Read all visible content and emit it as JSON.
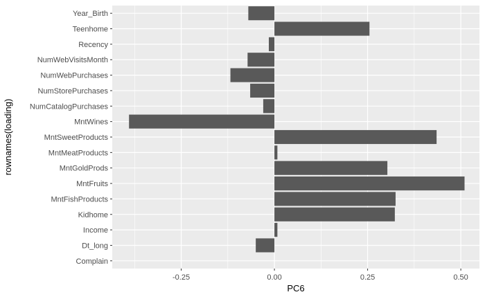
{
  "chart_data": {
    "type": "bar",
    "orientation": "horizontal",
    "title": "",
    "xlabel": "PC6",
    "ylabel": "rownames(loading)",
    "categories": [
      "Year_Birth",
      "Teenhome",
      "Recency",
      "NumWebVisitsMonth",
      "NumWebPurchases",
      "NumStorePurchases",
      "NumCatalogPurchases",
      "MntWines",
      "MntSweetProducts",
      "MntMeatProducts",
      "MntGoldProds",
      "MntFruits",
      "MntFishProducts",
      "Kidhome",
      "Income",
      "Dt_long",
      "Complain"
    ],
    "values": [
      -0.07,
      0.255,
      -0.015,
      -0.072,
      -0.118,
      -0.065,
      -0.03,
      -0.39,
      0.435,
      0.008,
      0.303,
      0.51,
      0.325,
      0.323,
      0.008,
      -0.05,
      0.0
    ],
    "xlim": [
      -0.435,
      0.55
    ],
    "xticks": [
      -0.25,
      0.0,
      0.25,
      0.5
    ],
    "xtick_labels": [
      "-0.25",
      "0.00",
      "0.25",
      "0.50"
    ],
    "grid": true,
    "colors": {
      "panel": "#ebebeb",
      "grid_major": "#ffffff",
      "bar": "#595959",
      "tick_text": "#4d4d4d",
      "tick_mark": "#333333"
    }
  }
}
